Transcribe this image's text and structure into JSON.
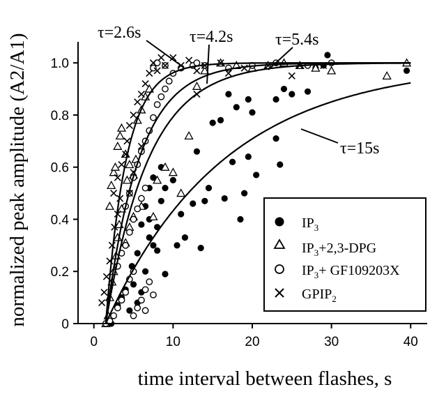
{
  "chart_data": {
    "type": "scatter",
    "xlabel": "time interval between flashes, s",
    "ylabel": "normalized peak amplitude (A2/A1)",
    "xlim": [
      -2,
      42
    ],
    "ylim": [
      0,
      1.07
    ],
    "xticks": [
      "0",
      "10",
      "20",
      "30",
      "40"
    ],
    "yticks": [
      "0",
      "0.2",
      "0.4",
      "0.6",
      "0.8",
      "1.0"
    ],
    "legend_position": "bottom-right",
    "series": [
      {
        "name": "IP3",
        "name_base": "IP",
        "name_sub": "3",
        "name_rest": "",
        "marker": "dot",
        "points": [
          [
            1.8,
            0.0
          ],
          [
            2.2,
            0.0
          ],
          [
            3.0,
            0.07
          ],
          [
            3.5,
            0.1
          ],
          [
            4.0,
            0.13
          ],
          [
            4.5,
            0.05
          ],
          [
            5.0,
            0.15
          ],
          [
            5.5,
            0.08
          ],
          [
            6.0,
            0.12
          ],
          [
            4.8,
            0.22
          ],
          [
            5.5,
            0.27
          ],
          [
            6.5,
            0.2
          ],
          [
            7.0,
            0.33
          ],
          [
            7.5,
            0.3
          ],
          [
            8.0,
            0.28
          ],
          [
            9.0,
            0.19
          ],
          [
            6.0,
            0.38
          ],
          [
            6.5,
            0.45
          ],
          [
            7.0,
            0.4
          ],
          [
            8.0,
            0.37
          ],
          [
            8.5,
            0.47
          ],
          [
            9.0,
            0.52
          ],
          [
            10.5,
            0.3
          ],
          [
            11.0,
            0.42
          ],
          [
            7.0,
            0.52
          ],
          [
            7.5,
            0.56
          ],
          [
            8.5,
            0.6
          ],
          [
            10.0,
            0.55
          ],
          [
            11.5,
            0.33
          ],
          [
            12.5,
            0.46
          ],
          [
            13.5,
            0.29
          ],
          [
            14.0,
            0.47
          ],
          [
            13.0,
            0.66
          ],
          [
            14.5,
            0.52
          ],
          [
            16.5,
            0.48
          ],
          [
            17.5,
            0.62
          ],
          [
            18.5,
            0.4
          ],
          [
            19.0,
            0.5
          ],
          [
            19.5,
            0.64
          ],
          [
            15.0,
            0.77
          ],
          [
            16.0,
            0.78
          ],
          [
            17.0,
            0.88
          ],
          [
            18.0,
            0.83
          ],
          [
            19.5,
            0.86
          ],
          [
            20.0,
            0.81
          ],
          [
            20.5,
            0.57
          ],
          [
            23.0,
            0.71
          ],
          [
            23.5,
            0.61
          ],
          [
            23.0,
            0.86
          ],
          [
            24.0,
            0.9
          ],
          [
            25.0,
            0.88
          ],
          [
            27.0,
            0.89
          ],
          [
            28.0,
            0.98
          ],
          [
            29.0,
            0.99
          ],
          [
            29.5,
            1.03
          ],
          [
            39.5,
            0.97
          ]
        ]
      },
      {
        "name": "IP3+2,3-DPG",
        "name_base": "IP",
        "name_sub": "3",
        "name_rest": "+2,3-DPG",
        "marker": "triangle",
        "points": [
          [
            1.5,
            0.0
          ],
          [
            1.8,
            0.03
          ],
          [
            2.0,
            0.1
          ],
          [
            2.3,
            0.16
          ],
          [
            2.5,
            0.2
          ],
          [
            2.8,
            0.26
          ],
          [
            3.0,
            0.33
          ],
          [
            3.2,
            0.38
          ],
          [
            3.5,
            0.44
          ],
          [
            2.0,
            0.45
          ],
          [
            2.2,
            0.53
          ],
          [
            2.5,
            0.58
          ],
          [
            2.7,
            0.6
          ],
          [
            3.0,
            0.68
          ],
          [
            3.3,
            0.72
          ],
          [
            3.5,
            0.75
          ],
          [
            4.0,
            0.65
          ],
          [
            4.2,
            0.55
          ],
          [
            4.5,
            0.61
          ],
          [
            5.0,
            0.57
          ],
          [
            5.3,
            0.63
          ],
          [
            5.5,
            0.78
          ],
          [
            6.0,
            0.82
          ],
          [
            6.5,
            0.87
          ],
          [
            7.0,
            0.9
          ],
          [
            4.0,
            0.31
          ],
          [
            4.5,
            0.37
          ],
          [
            5.0,
            0.41
          ],
          [
            6.0,
            0.45
          ],
          [
            7.5,
            0.41
          ],
          [
            8.0,
            0.55
          ],
          [
            9.0,
            0.6
          ],
          [
            10.0,
            0.58
          ],
          [
            11.0,
            0.5
          ],
          [
            12.0,
            0.72
          ],
          [
            13.0,
            0.91
          ],
          [
            14.0,
            0.97
          ],
          [
            16.0,
            1.0
          ],
          [
            18.0,
            0.99
          ],
          [
            20.0,
            0.98
          ],
          [
            22.0,
            0.99
          ],
          [
            24.0,
            1.0
          ],
          [
            26.0,
            0.99
          ],
          [
            28.0,
            0.98
          ],
          [
            30.0,
            0.97
          ],
          [
            37.0,
            0.95
          ],
          [
            39.5,
            1.0
          ]
        ]
      },
      {
        "name": "IP3+ GF109203X",
        "name_base": "IP",
        "name_sub": "3",
        "name_rest": "+ GF109203X",
        "marker": "circle",
        "points": [
          [
            1.5,
            0.0
          ],
          [
            2.0,
            0.01
          ],
          [
            2.5,
            0.03
          ],
          [
            3.0,
            0.06
          ],
          [
            3.5,
            0.09
          ],
          [
            4.0,
            0.12
          ],
          [
            4.5,
            0.17
          ],
          [
            5.0,
            0.2
          ],
          [
            3.0,
            0.22
          ],
          [
            3.5,
            0.27
          ],
          [
            4.0,
            0.3
          ],
          [
            4.5,
            0.35
          ],
          [
            5.0,
            0.4
          ],
          [
            5.5,
            0.44
          ],
          [
            6.0,
            0.48
          ],
          [
            6.5,
            0.52
          ],
          [
            4.0,
            0.45
          ],
          [
            4.5,
            0.5
          ],
          [
            5.0,
            0.56
          ],
          [
            5.5,
            0.61
          ],
          [
            6.0,
            0.66
          ],
          [
            6.5,
            0.7
          ],
          [
            7.0,
            0.74
          ],
          [
            7.5,
            0.79
          ],
          [
            5.0,
            0.03
          ],
          [
            5.5,
            0.06
          ],
          [
            6.0,
            0.09
          ],
          [
            6.5,
            0.13
          ],
          [
            7.0,
            0.16
          ],
          [
            7.5,
            0.11
          ],
          [
            6.5,
            0.05
          ],
          [
            8.0,
            0.84
          ],
          [
            8.5,
            0.87
          ],
          [
            9.0,
            0.9
          ],
          [
            9.5,
            0.93
          ],
          [
            10.0,
            0.96
          ],
          [
            11.0,
            0.98
          ],
          [
            12.5,
            0.99
          ],
          [
            7.5,
            0.98
          ],
          [
            8.0,
            1.0
          ],
          [
            9.0,
            0.99
          ],
          [
            13.0,
            1.0
          ],
          [
            14.0,
            0.99
          ],
          [
            17.0,
            0.98
          ],
          [
            20.0,
            0.99
          ],
          [
            23.0,
            1.0
          ],
          [
            27.0,
            0.99
          ],
          [
            30.0,
            1.0
          ]
        ]
      },
      {
        "name": "GPIP2",
        "name_base": "GPIP",
        "name_sub": "2",
        "name_rest": "",
        "marker": "cross",
        "points": [
          [
            1.0,
            0.08
          ],
          [
            1.3,
            0.12
          ],
          [
            1.6,
            0.18
          ],
          [
            2.0,
            0.24
          ],
          [
            2.3,
            0.3
          ],
          [
            2.6,
            0.37
          ],
          [
            3.0,
            0.42
          ],
          [
            3.3,
            0.48
          ],
          [
            2.5,
            0.5
          ],
          [
            3.0,
            0.56
          ],
          [
            3.5,
            0.61
          ],
          [
            4.0,
            0.65
          ],
          [
            4.2,
            0.7
          ],
          [
            4.5,
            0.76
          ],
          [
            5.0,
            0.8
          ],
          [
            5.5,
            0.85
          ],
          [
            6.0,
            0.88
          ],
          [
            6.5,
            0.92
          ],
          [
            7.0,
            0.96
          ],
          [
            7.5,
            1.0
          ],
          [
            8.0,
            0.97
          ],
          [
            8.5,
            1.02
          ],
          [
            9.0,
            0.99
          ],
          [
            10.0,
            1.02
          ],
          [
            11.0,
            0.99
          ],
          [
            12.0,
            1.01
          ],
          [
            13.0,
            0.97
          ],
          [
            14.0,
            0.99
          ],
          [
            16.0,
            1.0
          ],
          [
            19.0,
            0.98
          ],
          [
            22.0,
            0.99
          ],
          [
            26.0,
            0.99
          ],
          [
            29.0,
            0.99
          ],
          [
            4.5,
            0.5
          ],
          [
            5.0,
            0.58
          ],
          [
            6.0,
            0.68
          ],
          [
            13.0,
            0.88
          ],
          [
            25.0,
            0.95
          ],
          [
            17.0,
            0.96
          ]
        ]
      }
    ],
    "fits": [
      {
        "label": "τ=2.6s",
        "tau": 2.6,
        "t0": 1.5,
        "end": 40
      },
      {
        "label": "τ=4.2s",
        "tau": 4.2,
        "t0": 1.5,
        "end": 40
      },
      {
        "label": "τ=5.4s",
        "tau": 5.4,
        "t0": 1.5,
        "end": 40
      },
      {
        "label": "τ=15s",
        "tau": 15.0,
        "t0": 1.5,
        "end": 40
      }
    ]
  }
}
